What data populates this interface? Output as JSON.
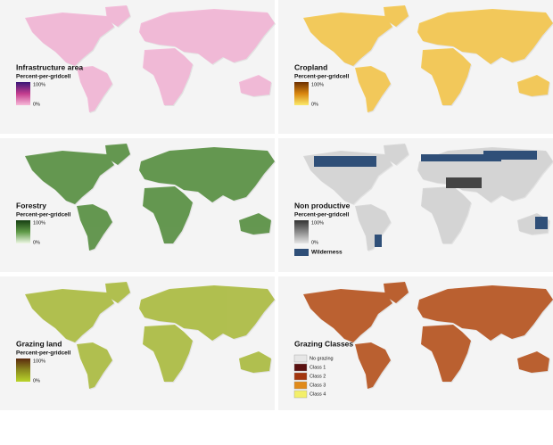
{
  "panels": [
    {
      "title": "Infrastructure area",
      "subtitle": "Percent-per-gridcell",
      "max_label": "100%",
      "min_label": "0%",
      "land": "#f3b3d5",
      "colors": [
        "#3a1877",
        "#c43c8e",
        "#f7b9d8"
      ]
    },
    {
      "title": "Cropland",
      "subtitle": "Percent-per-gridcell",
      "max_label": "100%",
      "min_label": "0%",
      "land": "#f5c443",
      "colors": [
        "#6e3000",
        "#d9860f",
        "#fbe96a"
      ]
    },
    {
      "title": "Forestry",
      "subtitle": "Percent-per-gridcell",
      "max_label": "100%",
      "min_label": "0%",
      "land": "#4f8a37",
      "colors": [
        "#163f12",
        "#5f9a47",
        "#eef7e4"
      ]
    },
    {
      "title": "Non productive",
      "subtitle": "Percent-per-gridcell",
      "max_label": "100%",
      "min_label": "0%",
      "extra": "Wilderness",
      "extra_color": "#2f4f78",
      "land": "#d2d2d2",
      "colors": [
        "#333333",
        "#8a8a8a",
        "#e6e6e6"
      ]
    },
    {
      "title": "Grazing land",
      "subtitle": "Percent-per-gridcell",
      "max_label": "100%",
      "min_label": "0%",
      "land": "#a8b936",
      "colors": [
        "#5b2a0e",
        "#8b8a1e",
        "#b9d42a"
      ]
    },
    {
      "title": "Grazing Classes",
      "land": "#b44a12",
      "classes": [
        {
          "label": "No grazing",
          "color": "#e6e6e6"
        },
        {
          "label": "Class 1",
          "color": "#5a1010"
        },
        {
          "label": "Class 2",
          "color": "#a3360e"
        },
        {
          "label": "Class 3",
          "color": "#e08a1a"
        },
        {
          "label": "Class 4",
          "color": "#f3ef6a"
        }
      ]
    }
  ]
}
